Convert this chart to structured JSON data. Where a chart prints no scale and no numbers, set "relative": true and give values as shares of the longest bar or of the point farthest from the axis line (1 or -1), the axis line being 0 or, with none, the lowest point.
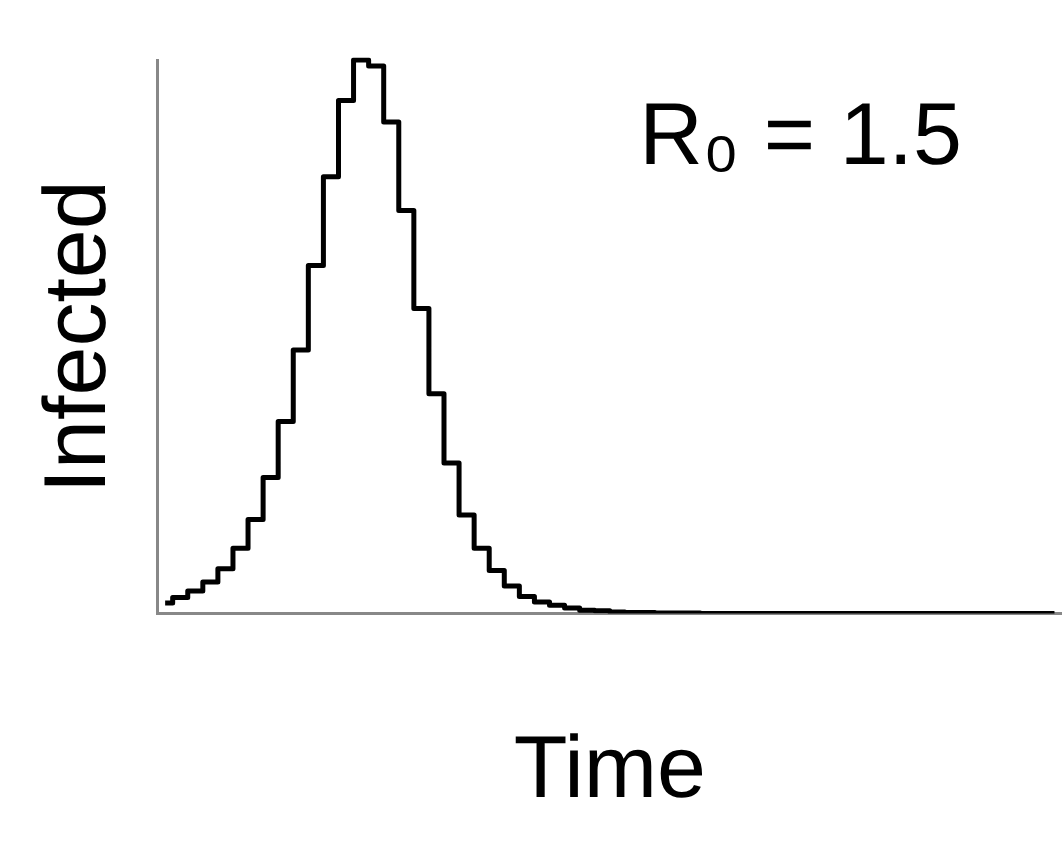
{
  "chart_data": {
    "type": "step",
    "xlabel": "Time",
    "ylabel": "Infected",
    "relative": true,
    "grid": false,
    "legend": false,
    "marker": "none",
    "line_style": "solid",
    "annotations": [
      "R₀ = 1.5"
    ],
    "categories": [
      null,
      null,
      null,
      null,
      null,
      null,
      null,
      null,
      null,
      null,
      null,
      null,
      null,
      null,
      null,
      null,
      null,
      null,
      null,
      null,
      null,
      null,
      null,
      null,
      null,
      null,
      null,
      null,
      null,
      null,
      null,
      null,
      null,
      null,
      null,
      null,
      null,
      null,
      null,
      null,
      null,
      null,
      null,
      null,
      null,
      null,
      null,
      null,
      null,
      null,
      null,
      null,
      null,
      null,
      null,
      null,
      null,
      null,
      null,
      null
    ],
    "series": [
      {
        "color": "#000000",
        "values": [
          0.019,
          0.029,
          0.041,
          0.057,
          0.081,
          0.118,
          0.17,
          0.246,
          0.347,
          0.476,
          0.629,
          0.789,
          0.927,
          1,
          0.989,
          0.888,
          0.728,
          0.551,
          0.397,
          0.272,
          0.178,
          0.118,
          0.078,
          0.05,
          0.031,
          0.021,
          0.015,
          0.01,
          0.006,
          0.005,
          0.003,
          0.002,
          0.002,
          0.001,
          0.001,
          0.001,
          0,
          0,
          0,
          0,
          0,
          0,
          0,
          0,
          0,
          0,
          0,
          0,
          0,
          0,
          0,
          0,
          0,
          0,
          0,
          0,
          0,
          0,
          0,
          0
        ]
      }
    ]
  }
}
